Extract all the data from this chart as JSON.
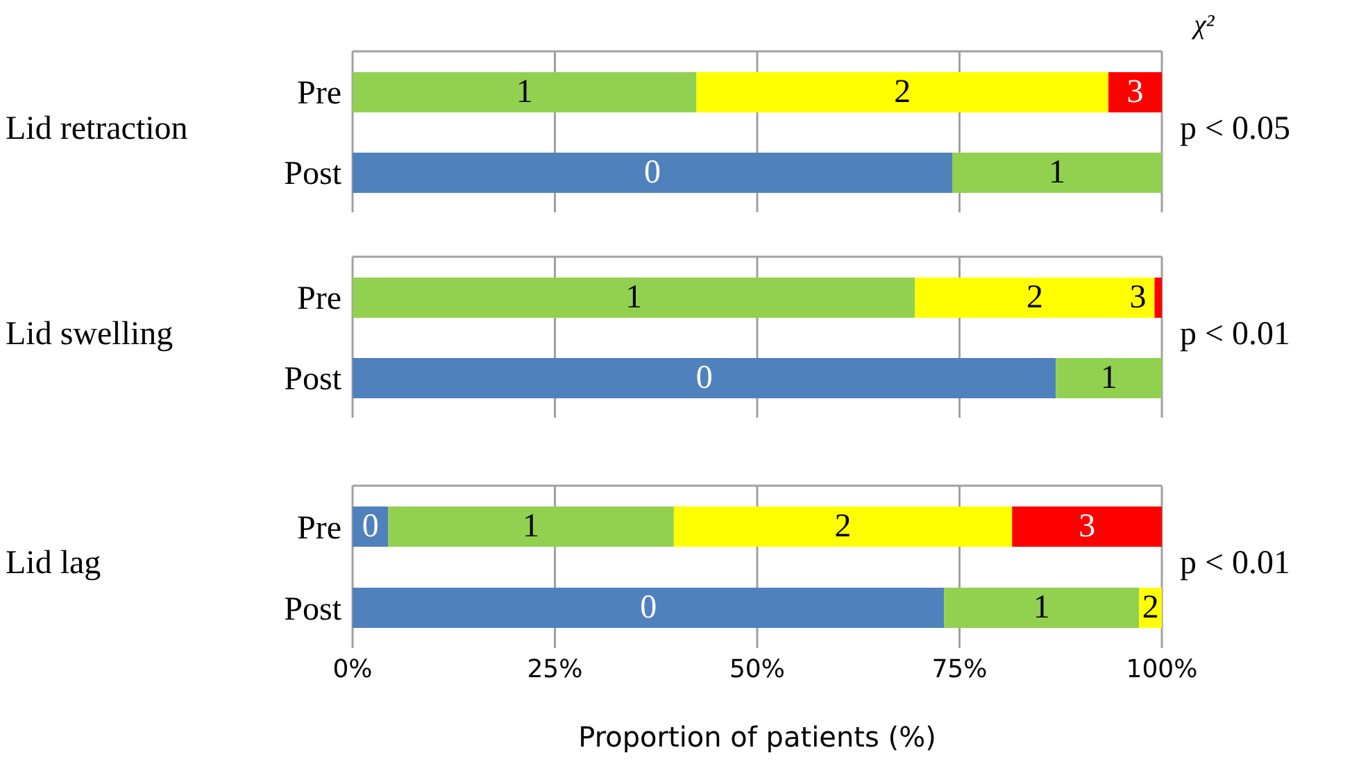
{
  "chart_data": [
    {
      "type": "bar",
      "orientation": "horizontal",
      "stacked": true,
      "ylabel": "Lid retraction",
      "categories": [
        "Pre",
        "Post"
      ],
      "series": [
        {
          "name": "0",
          "color": "#4f81bd",
          "values": [
            null,
            74.1
          ]
        },
        {
          "name": "1",
          "color": "#92d050",
          "values": [
            42.5,
            25.9
          ]
        },
        {
          "name": "2",
          "color": "#ffff00",
          "values": [
            50.9,
            null
          ]
        },
        {
          "name": "3",
          "color": "#ff0000",
          "values": [
            6.6,
            null
          ]
        }
      ],
      "xlim": [
        0,
        100
      ],
      "xticks": [
        0,
        25,
        50,
        75,
        100
      ],
      "grid": "x",
      "tick_labels": "y",
      "annotations": [
        "χ²",
        "p < 0.05"
      ]
    },
    {
      "type": "bar",
      "orientation": "horizontal",
      "stacked": true,
      "ylabel": "Lid swelling",
      "categories": [
        "Pre",
        "Post"
      ],
      "series": [
        {
          "name": "0",
          "color": "#4f81bd",
          "values": [
            null,
            86.9
          ]
        },
        {
          "name": "1",
          "color": "#92d050",
          "values": [
            69.5,
            13.1
          ]
        },
        {
          "name": "2",
          "color": "#ffff00",
          "values": [
            29.6,
            null
          ]
        },
        {
          "name": "3",
          "color": "#ff0000",
          "values": [
            0.9,
            null
          ]
        }
      ],
      "xlim": [
        0,
        100
      ],
      "xticks": [
        0,
        25,
        50,
        75,
        100
      ],
      "grid": "x",
      "tick_labels": "y",
      "annotations": [
        "p < 0.01"
      ]
    },
    {
      "type": "bar",
      "orientation": "horizontal",
      "stacked": true,
      "ylabel": "Lid lag",
      "xlabel": "Proportion of patients (%)",
      "categories": [
        "Pre",
        "Post"
      ],
      "series": [
        {
          "name": "0",
          "color": "#4f81bd",
          "values": [
            4.4,
            73.1
          ]
        },
        {
          "name": "1",
          "color": "#92d050",
          "values": [
            35.3,
            24.1
          ]
        },
        {
          "name": "2",
          "color": "#ffff00",
          "values": [
            41.8,
            2.8
          ]
        },
        {
          "name": "3",
          "color": "#ff0000",
          "values": [
            18.5,
            null
          ]
        }
      ],
      "xlim": [
        0,
        100
      ],
      "xticks": [
        {
          "value": 0,
          "label": "0%"
        },
        {
          "value": 25,
          "label": "25%"
        },
        {
          "value": 50,
          "label": "50%"
        },
        {
          "value": 75,
          "label": "75%"
        },
        {
          "value": 100,
          "label": "100%"
        }
      ],
      "grid": "x",
      "annotations": [
        "p < 0.01"
      ]
    }
  ]
}
